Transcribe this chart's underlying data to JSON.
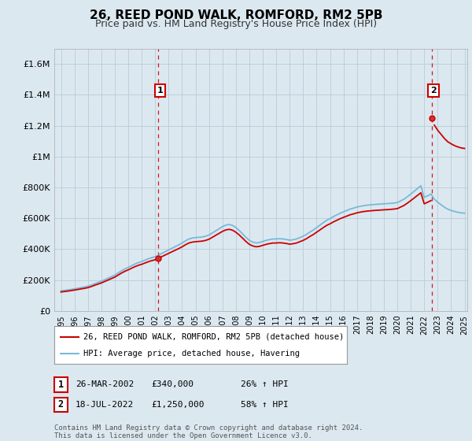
{
  "title": "26, REED POND WALK, ROMFORD, RM2 5PB",
  "subtitle": "Price paid vs. HM Land Registry's House Price Index (HPI)",
  "ylim": [
    0,
    1700000
  ],
  "yticks": [
    0,
    200000,
    400000,
    600000,
    800000,
    1000000,
    1200000,
    1400000,
    1600000
  ],
  "ytick_labels": [
    "£0",
    "£200K",
    "£400K",
    "£600K",
    "£800K",
    "£1M",
    "£1.2M",
    "£1.4M",
    "£1.6M"
  ],
  "x_start": 1995,
  "x_end": 2025,
  "xticks": [
    1995,
    1996,
    1997,
    1998,
    1999,
    2000,
    2001,
    2002,
    2003,
    2004,
    2005,
    2006,
    2007,
    2008,
    2009,
    2010,
    2011,
    2012,
    2013,
    2014,
    2015,
    2016,
    2017,
    2018,
    2019,
    2020,
    2021,
    2022,
    2023,
    2024,
    2025
  ],
  "hpi_x": [
    1995.0,
    1995.25,
    1995.5,
    1995.75,
    1996.0,
    1996.25,
    1996.5,
    1996.75,
    1997.0,
    1997.25,
    1997.5,
    1997.75,
    1998.0,
    1998.25,
    1998.5,
    1998.75,
    1999.0,
    1999.25,
    1999.5,
    1999.75,
    2000.0,
    2000.25,
    2000.5,
    2000.75,
    2001.0,
    2001.25,
    2001.5,
    2001.75,
    2002.0,
    2002.25,
    2002.5,
    2002.75,
    2003.0,
    2003.25,
    2003.5,
    2003.75,
    2004.0,
    2004.25,
    2004.5,
    2004.75,
    2005.0,
    2005.25,
    2005.5,
    2005.75,
    2006.0,
    2006.25,
    2006.5,
    2006.75,
    2007.0,
    2007.25,
    2007.5,
    2007.75,
    2008.0,
    2008.25,
    2008.5,
    2008.75,
    2009.0,
    2009.25,
    2009.5,
    2009.75,
    2010.0,
    2010.25,
    2010.5,
    2010.75,
    2011.0,
    2011.25,
    2011.5,
    2011.75,
    2012.0,
    2012.25,
    2012.5,
    2012.75,
    2013.0,
    2013.25,
    2013.5,
    2013.75,
    2014.0,
    2014.25,
    2014.5,
    2014.75,
    2015.0,
    2015.25,
    2015.5,
    2015.75,
    2016.0,
    2016.25,
    2016.5,
    2016.75,
    2017.0,
    2017.25,
    2017.5,
    2017.75,
    2018.0,
    2018.25,
    2018.5,
    2018.75,
    2019.0,
    2019.25,
    2019.5,
    2019.75,
    2020.0,
    2020.25,
    2020.5,
    2020.75,
    2021.0,
    2021.25,
    2021.5,
    2021.75,
    2022.0,
    2022.25,
    2022.5,
    2022.75,
    2023.0,
    2023.25,
    2023.5,
    2023.75,
    2024.0,
    2024.25,
    2024.5,
    2024.75,
    2025.0
  ],
  "hpi_y": [
    130000,
    133000,
    136000,
    139000,
    143000,
    147000,
    151000,
    155000,
    160000,
    167000,
    176000,
    184000,
    192000,
    202000,
    212000,
    222000,
    232000,
    246000,
    260000,
    272000,
    282000,
    293000,
    304000,
    313000,
    320000,
    329000,
    338000,
    345000,
    351000,
    361000,
    373000,
    384000,
    395000,
    406000,
    417000,
    428000,
    440000,
    454000,
    466000,
    472000,
    475000,
    477000,
    479000,
    484000,
    492000,
    505000,
    519000,
    532000,
    546000,
    556000,
    560000,
    554000,
    540000,
    521000,
    499000,
    476000,
    457000,
    446000,
    440000,
    443000,
    450000,
    457000,
    462000,
    466000,
    466000,
    468000,
    466000,
    463000,
    458000,
    461000,
    466000,
    475000,
    484000,
    496000,
    511000,
    524000,
    540000,
    556000,
    572000,
    587000,
    598000,
    611000,
    622000,
    633000,
    642000,
    651000,
    660000,
    666000,
    673000,
    678000,
    682000,
    685000,
    687000,
    689000,
    691000,
    692000,
    694000,
    695000,
    697000,
    699000,
    702000,
    713000,
    724000,
    740000,
    757000,
    775000,
    793000,
    811000,
    735000,
    746000,
    757000,
    724000,
    704000,
    688000,
    672000,
    659000,
    651000,
    644000,
    639000,
    635000,
    633000
  ],
  "sale1_x": 2002.23,
  "sale1_y": 340000,
  "sale1_label": "1",
  "sale1_date": "26-MAR-2002",
  "sale1_price": "£340,000",
  "sale1_hpi": "26% ↑ HPI",
  "sale2_x": 2022.54,
  "sale2_y": 1250000,
  "sale2_label": "2",
  "sale2_date": "18-JUL-2022",
  "sale2_price": "£1,250,000",
  "sale2_hpi": "58% ↑ HPI",
  "vline1_x": 2002.23,
  "vline2_x": 2022.54,
  "line_color_hpi": "#7ab8d9",
  "line_color_price": "#cc0000",
  "vline_color": "#cc0000",
  "bg_color": "#dce8f0",
  "plot_bg": "#dce8f0",
  "legend_label_price": "26, REED POND WALK, ROMFORD, RM2 5PB (detached house)",
  "legend_label_hpi": "HPI: Average price, detached house, Havering",
  "footer": "Contains HM Land Registry data © Crown copyright and database right 2024.\nThis data is licensed under the Open Government Licence v3.0.",
  "title_fontsize": 11,
  "subtitle_fontsize": 9,
  "axis_fontsize": 8
}
